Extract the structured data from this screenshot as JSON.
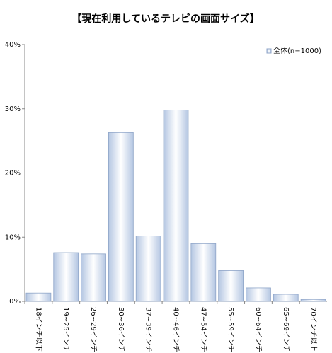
{
  "chart_data": {
    "type": "bar",
    "title": "【現在利用しているテレビの画面サイズ】",
    "categories": [
      "18インチ以下",
      "19~25インチ",
      "26~29インチ",
      "30~36インチ",
      "37~39インチ",
      "40~46インチ",
      "47~54インチ",
      "55~59インチ",
      "60~64インチ",
      "65~69インチ",
      "70インチ以上"
    ],
    "series": [
      {
        "name": "全体(n=1000)",
        "color": "#b4c6e2",
        "values": [
          1.3,
          7.6,
          7.4,
          26.3,
          10.2,
          29.8,
          9.0,
          4.8,
          2.1,
          1.1,
          0.3
        ]
      }
    ],
    "ylim": [
      0,
      40
    ],
    "yticks": [
      {
        "value": 0,
        "label": "0%"
      },
      {
        "value": 10,
        "label": "10%"
      },
      {
        "value": 20,
        "label": "20%"
      },
      {
        "value": 30,
        "label": "30%"
      },
      {
        "value": 40,
        "label": "40%"
      }
    ],
    "grid": false,
    "legend": "top-right"
  }
}
